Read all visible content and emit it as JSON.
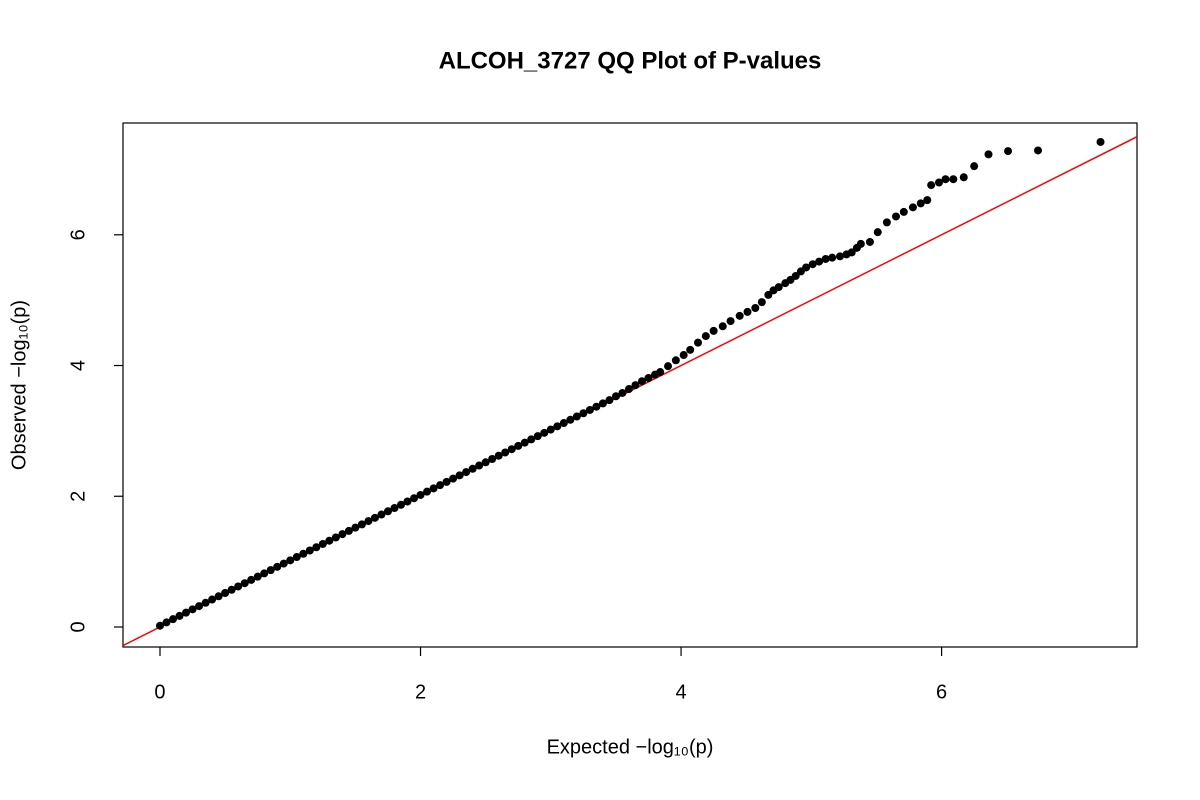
{
  "chart_data": {
    "type": "scatter",
    "title": "ALCOH_3727 QQ Plot of P-values",
    "xlabel": "Expected  −log₁₀(p)",
    "ylabel": "Observed  −log₁₀(p)",
    "xlim": [
      -0.284,
      7.5
    ],
    "ylim": [
      -0.306,
      7.71
    ],
    "xticks": [
      0,
      2,
      4,
      6
    ],
    "yticks": [
      0,
      2,
      4,
      6
    ],
    "color": "#000000",
    "reference_line": {
      "intercept": 0,
      "slope": 1,
      "color": "#ff0000"
    },
    "x": [
      0,
      0.05,
      0.1,
      0.15,
      0.2,
      0.25,
      0.3,
      0.35,
      0.4,
      0.45,
      0.5,
      0.55,
      0.6,
      0.65,
      0.7,
      0.75,
      0.8,
      0.85,
      0.9,
      0.95,
      1,
      1.05,
      1.1,
      1.15,
      1.2,
      1.25,
      1.3,
      1.35,
      1.4,
      1.45,
      1.5,
      1.55,
      1.6,
      1.65,
      1.7,
      1.75,
      1.8,
      1.85,
      1.9,
      1.95,
      2,
      2.05,
      2.1,
      2.15,
      2.2,
      2.25,
      2.3,
      2.35,
      2.4,
      2.45,
      2.5,
      2.55,
      2.6,
      2.65,
      2.7,
      2.75,
      2.8,
      2.85,
      2.9,
      2.95,
      3,
      3.05,
      3.1,
      3.15,
      3.2,
      3.25,
      3.3,
      3.35,
      3.4,
      3.45,
      3.5,
      3.55,
      3.6,
      3.65,
      3.7,
      3.75,
      3.8,
      3.84,
      3.9,
      3.96,
      4.02,
      4.07,
      4.13,
      4.19,
      4.25,
      4.32,
      4.38,
      4.45,
      4.51,
      4.57,
      4.62,
      4.67,
      4.71,
      4.75,
      4.8,
      4.84,
      4.88,
      4.92,
      4.96,
      5.01,
      5.06,
      5.11,
      5.16,
      5.22,
      5.27,
      5.31,
      5.35,
      5.38,
      5.45,
      5.51,
      5.58,
      5.65,
      5.71,
      5.78,
      5.84,
      5.89,
      5.92,
      5.98,
      6.03,
      6.09,
      6.17,
      6.25,
      6.36,
      6.51,
      6.74,
      7.22
    ],
    "values": [
      0.02,
      0.07,
      0.12,
      0.17,
      0.22,
      0.27,
      0.32,
      0.37,
      0.42,
      0.47,
      0.52,
      0.57,
      0.62,
      0.67,
      0.72,
      0.77,
      0.82,
      0.87,
      0.92,
      0.97,
      1.02,
      1.07,
      1.12,
      1.17,
      1.22,
      1.27,
      1.32,
      1.37,
      1.42,
      1.47,
      1.52,
      1.57,
      1.62,
      1.67,
      1.72,
      1.77,
      1.82,
      1.87,
      1.92,
      1.97,
      2.02,
      2.07,
      2.12,
      2.17,
      2.22,
      2.27,
      2.32,
      2.37,
      2.42,
      2.47,
      2.52,
      2.57,
      2.62,
      2.67,
      2.72,
      2.77,
      2.82,
      2.87,
      2.92,
      2.97,
      3.02,
      3.07,
      3.12,
      3.17,
      3.22,
      3.27,
      3.32,
      3.37,
      3.42,
      3.47,
      3.53,
      3.58,
      3.64,
      3.7,
      3.76,
      3.81,
      3.86,
      3.9,
      3.99,
      4.08,
      4.16,
      4.24,
      4.35,
      4.45,
      4.53,
      4.6,
      4.68,
      4.76,
      4.82,
      4.88,
      4.97,
      5.08,
      5.15,
      5.2,
      5.26,
      5.31,
      5.37,
      5.44,
      5.5,
      5.55,
      5.59,
      5.63,
      5.65,
      5.67,
      5.7,
      5.73,
      5.8,
      5.86,
      5.89,
      6.04,
      6.19,
      6.28,
      6.35,
      6.42,
      6.48,
      6.53,
      6.76,
      6.8,
      6.85,
      6.85,
      6.88,
      7.05,
      7.23,
      7.28,
      7.29,
      7.42
    ]
  }
}
